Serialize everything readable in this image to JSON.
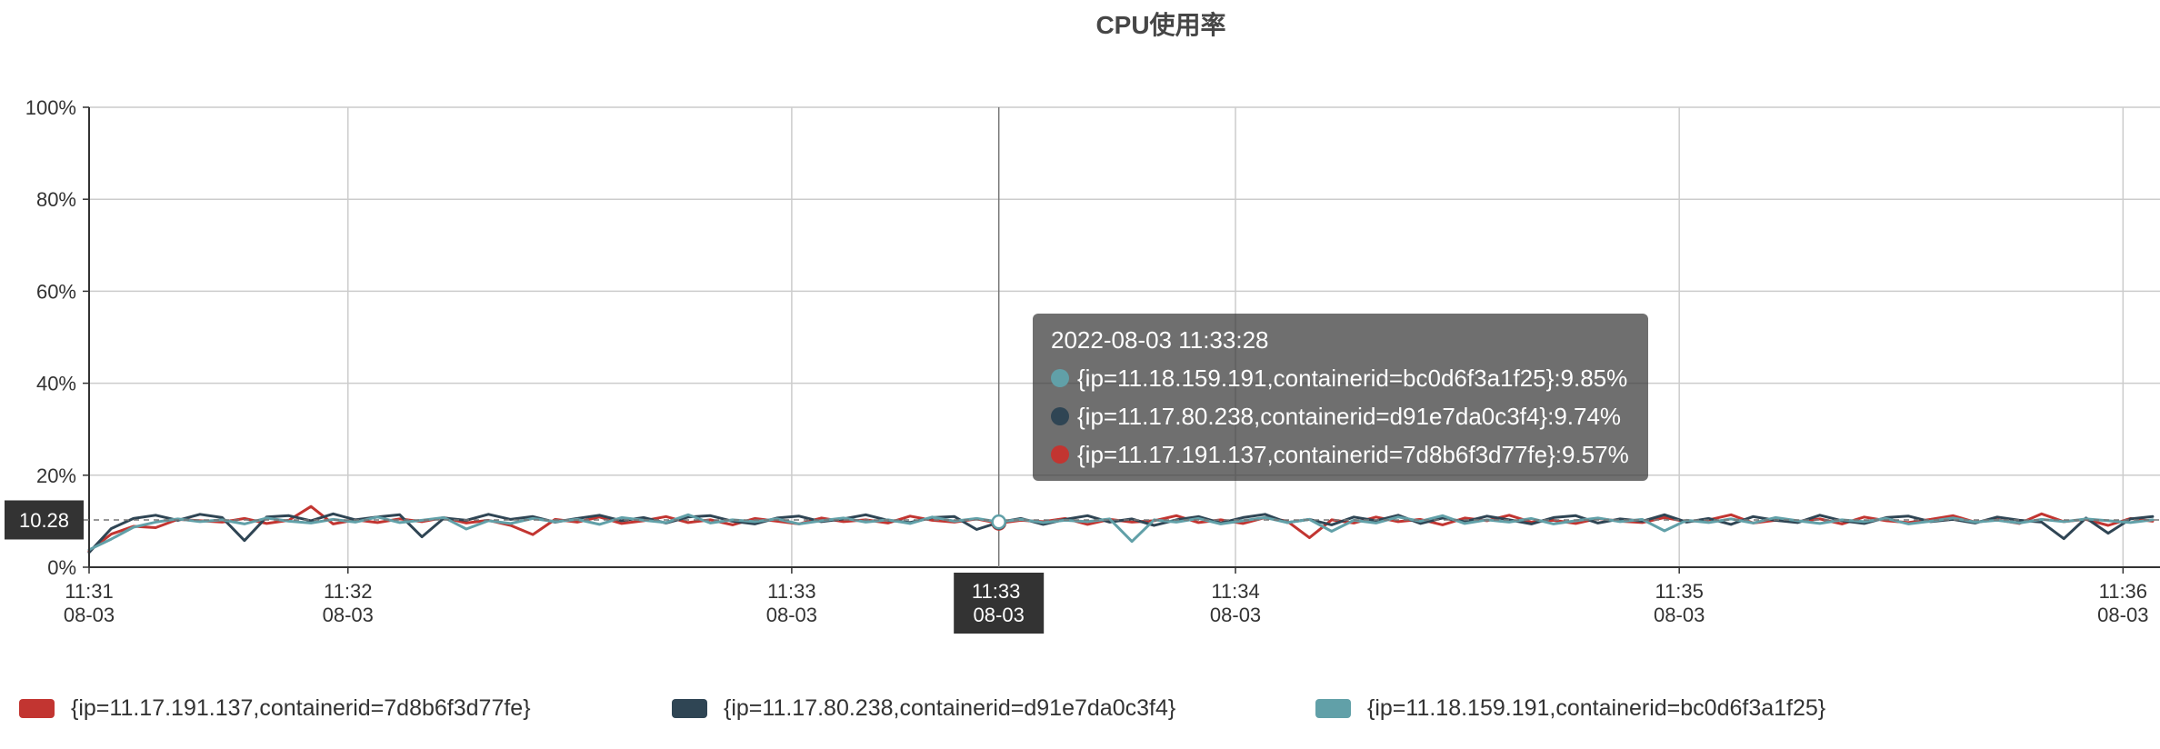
{
  "colors": {
    "grid": "#cccccc",
    "axis": "#333333",
    "crosshair": "#777777",
    "pointer_label_bg": "#333333",
    "tooltip_bg": "rgba(50,50,50,0.7)"
  },
  "tooltip": {
    "title": "2022-08-03 11:33:28",
    "items": [
      {
        "color": "#61a0a8",
        "text": "{ip=11.18.159.191,containerid=bc0d6f3a1f25}:9.85%"
      },
      {
        "color": "#2f4554",
        "text": "{ip=11.17.80.238,containerid=d91e7da0c3f4}:9.74%"
      },
      {
        "color": "#c23531",
        "text": "{ip=11.17.191.137,containerid=7d8b6f3d77fe}:9.57%"
      }
    ]
  },
  "axis_pointer": {
    "time": "11:33:28",
    "time_label": [
      "11:33",
      "08-03"
    ],
    "value_label": "10.28"
  },
  "chart_data": {
    "type": "line",
    "title": "CPU使用率",
    "legend": "bottom-left",
    "grid": true,
    "ylim": [
      0,
      100
    ],
    "y_ticks": [
      {
        "value": 0,
        "label": "0%"
      },
      {
        "value": 20,
        "label": "20%"
      },
      {
        "value": 40,
        "label": "40%"
      },
      {
        "value": 60,
        "label": "60%"
      },
      {
        "value": 80,
        "label": "80%"
      },
      {
        "value": 100,
        "label": "100%"
      }
    ],
    "xlim": [
      "11:31:25",
      "11:36:05"
    ],
    "x_ticks": [
      {
        "value": "11:31:25",
        "label": [
          "11:31",
          "08-03"
        ]
      },
      {
        "value": "11:32:00",
        "label": [
          "11:32",
          "08-03"
        ]
      },
      {
        "value": "11:33:00",
        "label": [
          "11:33",
          "08-03"
        ]
      },
      {
        "value": "11:34:00",
        "label": [
          "11:34",
          "08-03"
        ]
      },
      {
        "value": "11:35:00",
        "label": [
          "11:35",
          "08-03"
        ]
      },
      {
        "value": "11:36:00",
        "label": [
          "11:36",
          "08-03"
        ]
      }
    ],
    "x": [
      "11:31:25",
      "11:31:28",
      "11:31:31",
      "11:31:34",
      "11:31:37",
      "11:31:40",
      "11:31:43",
      "11:31:46",
      "11:31:49",
      "11:31:52",
      "11:31:55",
      "11:31:58",
      "11:32:01",
      "11:32:04",
      "11:32:07",
      "11:32:10",
      "11:32:13",
      "11:32:16",
      "11:32:19",
      "11:32:22",
      "11:32:25",
      "11:32:28",
      "11:32:31",
      "11:32:34",
      "11:32:37",
      "11:32:40",
      "11:32:43",
      "11:32:46",
      "11:32:49",
      "11:32:52",
      "11:32:55",
      "11:32:58",
      "11:33:01",
      "11:33:04",
      "11:33:07",
      "11:33:10",
      "11:33:13",
      "11:33:16",
      "11:33:19",
      "11:33:22",
      "11:33:25",
      "11:33:28",
      "11:33:31",
      "11:33:34",
      "11:33:37",
      "11:33:40",
      "11:33:43",
      "11:33:46",
      "11:33:49",
      "11:33:52",
      "11:33:55",
      "11:33:58",
      "11:34:01",
      "11:34:04",
      "11:34:07",
      "11:34:10",
      "11:34:13",
      "11:34:16",
      "11:34:19",
      "11:34:22",
      "11:34:25",
      "11:34:28",
      "11:34:31",
      "11:34:34",
      "11:34:37",
      "11:34:40",
      "11:34:43",
      "11:34:46",
      "11:34:49",
      "11:34:52",
      "11:34:55",
      "11:34:58",
      "11:35:01",
      "11:35:04",
      "11:35:07",
      "11:35:10",
      "11:35:13",
      "11:35:16",
      "11:35:19",
      "11:35:22",
      "11:35:25",
      "11:35:28",
      "11:35:31",
      "11:35:34",
      "11:35:37",
      "11:35:40",
      "11:35:43",
      "11:35:46",
      "11:35:49",
      "11:35:52",
      "11:35:55",
      "11:35:58",
      "11:36:01",
      "11:36:04"
    ],
    "series": [
      {
        "name": "{ip=11.17.191.137,containerid=7d8b6f3d77fe}",
        "color": "#c23531",
        "values": [
          3.5,
          7.2,
          8.9,
          8.6,
          10.4,
          10.1,
          9.8,
          10.6,
          9.5,
          10.2,
          13.2,
          9.4,
          10.3,
          9.7,
          10.5,
          9.9,
          10.8,
          9.6,
          10.2,
          9.1,
          7.1,
          10.4,
          9.8,
          10.9,
          9.5,
          10.1,
          11.0,
          9.7,
          10.3,
          9.2,
          10.6,
          10.0,
          9.4,
          10.7,
          9.9,
          10.3,
          9.6,
          11.1,
          10.2,
          9.8,
          10.5,
          9.57,
          10.2,
          9.9,
          10.6,
          9.3,
          10.4,
          9.8,
          10.1,
          11.2,
          9.7,
          10.3,
          9.5,
          10.8,
          10.0,
          6.4,
          10.3,
          9.6,
          10.9,
          9.9,
          10.4,
          9.2,
          10.7,
          10.1,
          11.3,
          9.8,
          10.2,
          9.5,
          10.6,
          10.0,
          9.7,
          10.8,
          9.9,
          10.3,
          11.4,
          9.6,
          10.2,
          9.9,
          10.5,
          9.4,
          10.9,
          10.1,
          9.7,
          10.4,
          11.2,
          9.8,
          10.3,
          9.5,
          11.6,
          9.9,
          10.4,
          9.1,
          10.6,
          10.0
        ]
      },
      {
        "name": "{ip=11.17.80.238,containerid=d91e7da0c3f4}",
        "color": "#2f4554",
        "values": [
          3.2,
          8.4,
          10.6,
          11.3,
          10.2,
          11.5,
          10.8,
          5.8,
          10.9,
          11.2,
          10.1,
          11.6,
          10.3,
          10.9,
          11.4,
          6.6,
          10.7,
          10.2,
          11.5,
          10.4,
          11.0,
          9.8,
          10.6,
          11.3,
          10.1,
          10.8,
          9.6,
          10.9,
          11.2,
          10.0,
          9.4,
          10.7,
          11.1,
          9.9,
          10.5,
          11.4,
          10.2,
          9.7,
          10.8,
          11.0,
          8.2,
          9.74,
          10.6,
          9.3,
          10.4,
          11.2,
          9.8,
          10.5,
          9.1,
          10.3,
          11.0,
          9.6,
          10.8,
          11.5,
          9.7,
          10.4,
          9.2,
          10.9,
          10.1,
          11.3,
          9.5,
          10.7,
          9.9,
          11.1,
          10.3,
          9.4,
          10.8,
          11.2,
          9.6,
          10.5,
          10.0,
          11.4,
          9.8,
          10.6,
          9.3,
          11.0,
          10.2,
          9.7,
          11.3,
          10.1,
          9.5,
          10.8,
          11.1,
          9.9,
          10.4,
          9.6,
          10.9,
          10.2,
          9.8,
          6.2,
          10.7,
          7.4,
          10.5,
          11.0
        ]
      },
      {
        "name": "{ip=11.18.159.191,containerid=bc0d6f3a1f25}",
        "color": "#61a0a8",
        "values": [
          3.8,
          6.1,
          8.7,
          9.8,
          10.5,
          9.9,
          10.3,
          9.4,
          10.7,
          10.0,
          9.6,
          10.4,
          9.8,
          10.9,
          9.7,
          10.2,
          10.8,
          8.3,
          10.1,
          9.5,
          10.6,
          9.9,
          10.4,
          9.3,
          10.8,
          10.2,
          9.7,
          11.4,
          9.6,
          10.3,
          9.9,
          10.5,
          9.4,
          10.1,
          10.7,
          9.8,
          10.3,
          9.5,
          10.9,
          10.0,
          10.6,
          9.85,
          10.4,
          9.7,
          10.2,
          9.9,
          10.5,
          5.6,
          10.3,
          9.8,
          10.6,
          9.4,
          10.1,
          10.8,
          9.7,
          10.4,
          7.8,
          10.2,
          9.6,
          10.9,
          10.0,
          11.2,
          9.5,
          10.3,
          9.8,
          10.6,
          9.4,
          10.1,
          10.7,
          9.9,
          10.4,
          7.9,
          10.2,
          9.7,
          10.5,
          9.6,
          10.8,
          10.1,
          9.5,
          10.3,
          9.9,
          10.6,
          9.4,
          10.0,
          10.7,
          9.8,
          10.2,
          9.6,
          10.4,
          9.9,
          10.5,
          10.1,
          9.7,
          10.3
        ]
      }
    ]
  }
}
